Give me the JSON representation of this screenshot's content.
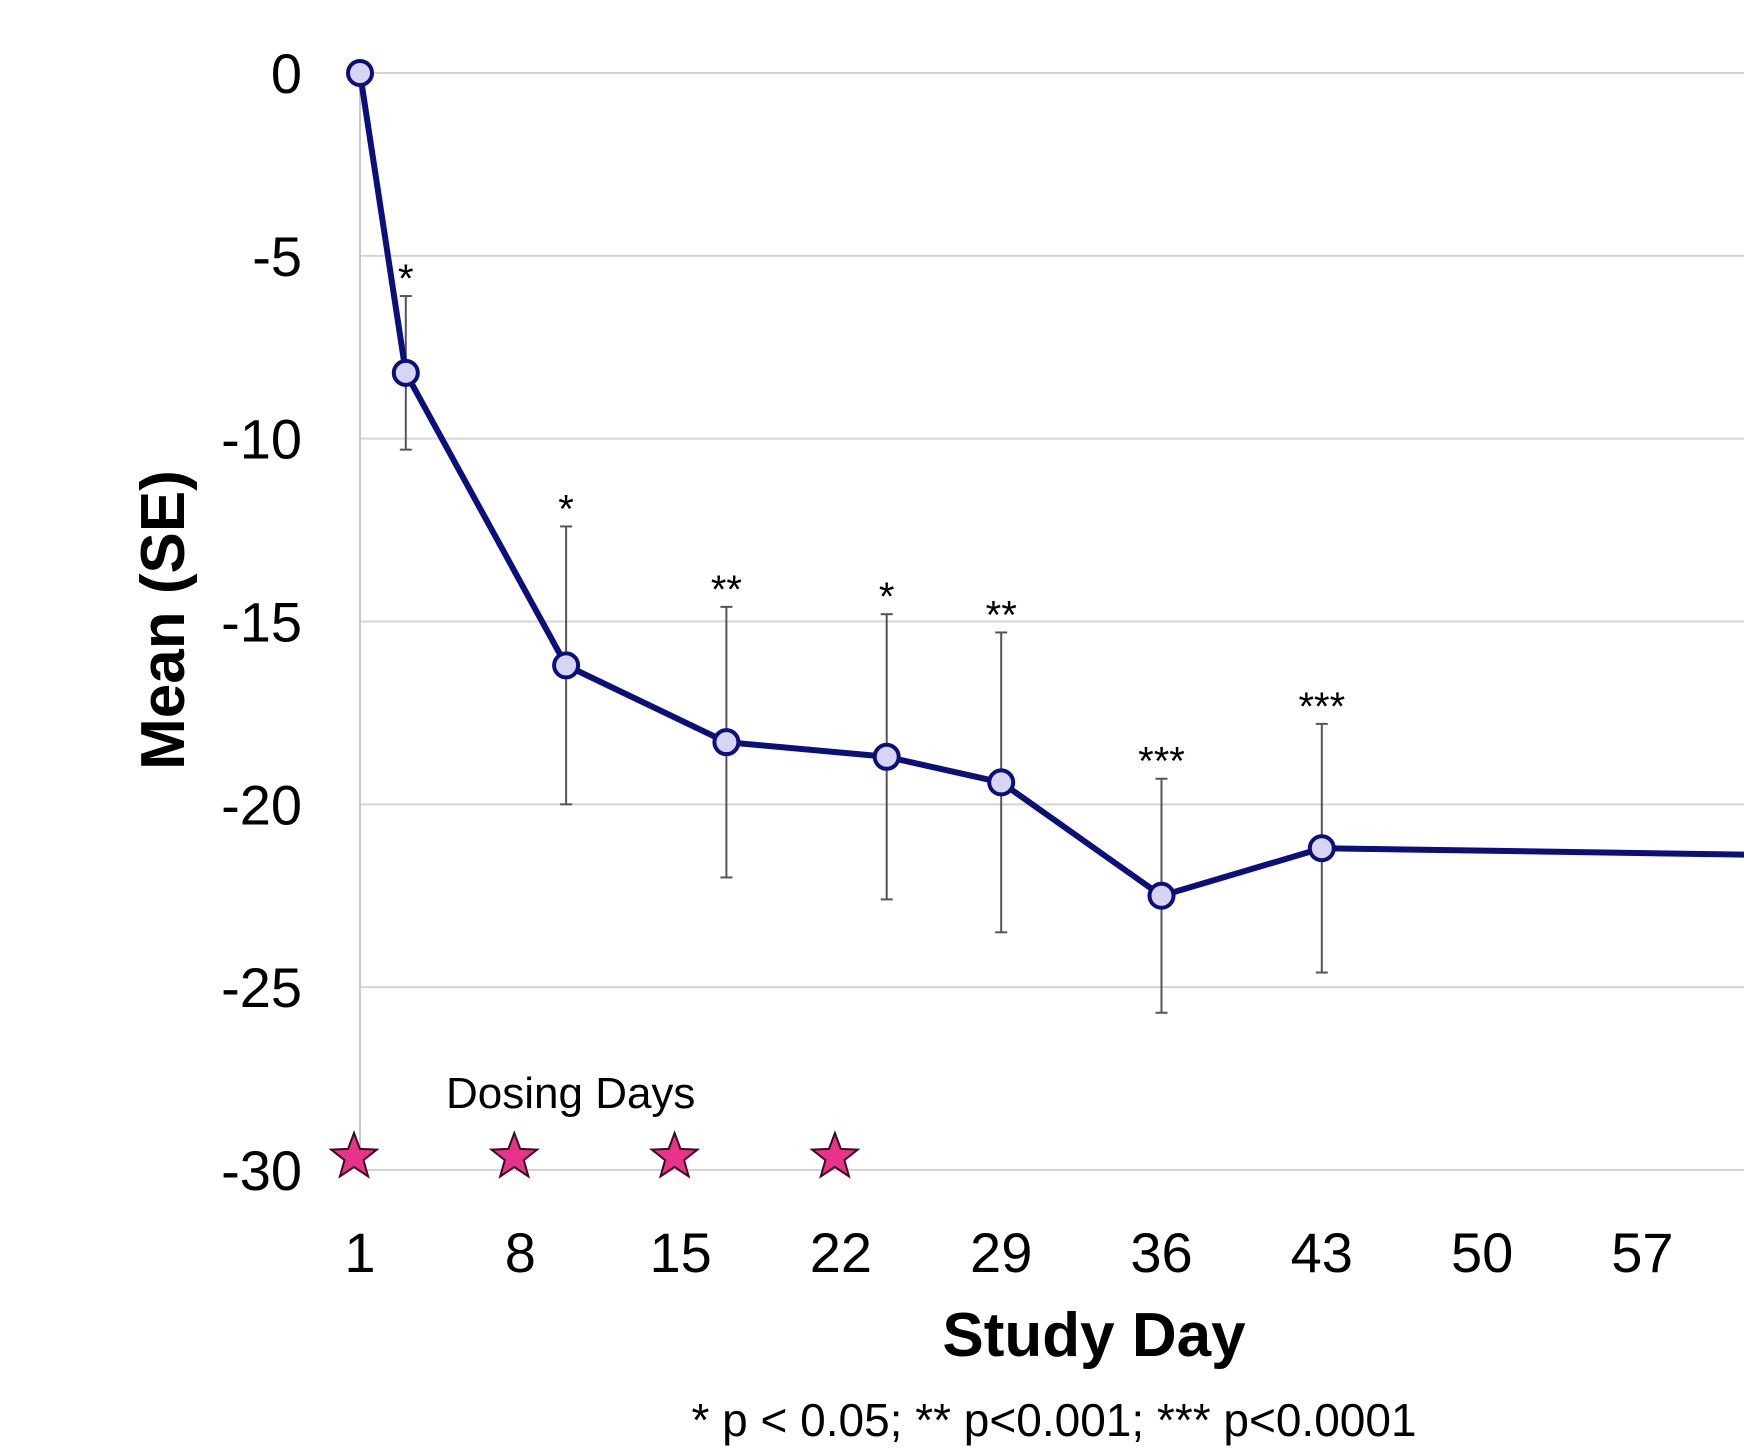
{
  "chart_data": {
    "type": "line",
    "xlabel": "Study Day",
    "ylabel": "Mean (SE)",
    "footnote": "* p < 0.05; ** p<0.001; *** p<0.0001",
    "x_ticks": [
      "1",
      "8",
      "15",
      "22",
      "29",
      "36",
      "43",
      "50",
      "57"
    ],
    "y_ticks": [
      "0",
      "-5",
      "-10",
      "-15",
      "-20",
      "-25",
      "-30"
    ],
    "xlim": [
      1,
      64
    ],
    "ylim": [
      -30,
      0
    ],
    "grid": "horizontal",
    "series": [
      {
        "color": "#0a0f7a",
        "marker_fill": "#d8d4f4",
        "points": [
          {
            "x": 1,
            "y": 0
          },
          {
            "x": 3,
            "y": -8.2,
            "err_low": -10.3,
            "err_high": -6.1,
            "sig": "*"
          },
          {
            "x": 10,
            "y": -16.2,
            "err_low": -20.0,
            "err_high": -12.4,
            "sig": "*"
          },
          {
            "x": 17,
            "y": -18.3,
            "err_low": -22.0,
            "err_high": -14.6,
            "sig": "**"
          },
          {
            "x": 24,
            "y": -18.7,
            "err_low": -22.6,
            "err_high": -14.8,
            "sig": "*"
          },
          {
            "x": 29,
            "y": -19.4,
            "err_low": -23.5,
            "err_high": -15.3,
            "sig": "**"
          },
          {
            "x": 36,
            "y": -22.5,
            "err_low": -25.7,
            "err_high": -19.3,
            "sig": "***"
          },
          {
            "x": 43,
            "y": -21.2,
            "err_low": -24.6,
            "err_high": -17.8,
            "sig": "***"
          },
          {
            "x": 64,
            "y": -21.4
          }
        ]
      }
    ],
    "dosing": {
      "label": "Dosing Days",
      "days": [
        1,
        8,
        15,
        22
      ],
      "marker": "star",
      "color": "#e8338a"
    }
  }
}
